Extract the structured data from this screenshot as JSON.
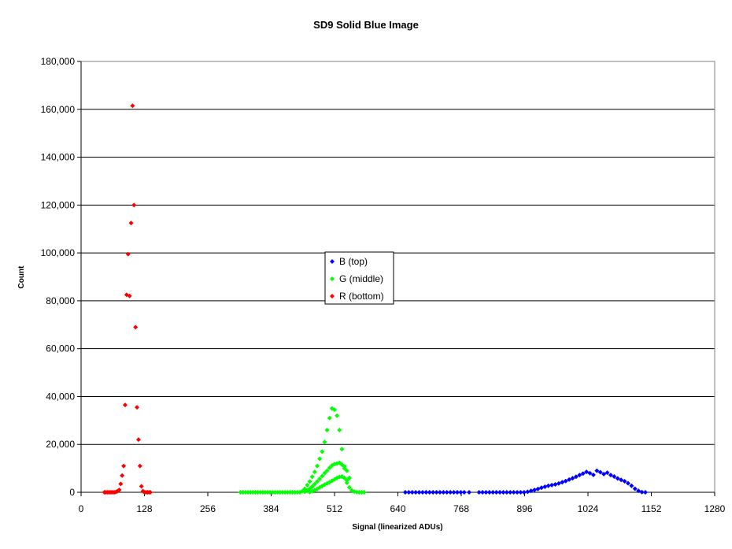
{
  "chart_data": {
    "type": "scatter",
    "title": "SD9 Solid Blue Image",
    "xlabel": "Signal (linearized ADUs)",
    "ylabel": "Count",
    "xlim": [
      0,
      1280
    ],
    "ylim": [
      0,
      180000
    ],
    "xticks": [
      0,
      128,
      256,
      384,
      512,
      640,
      768,
      896,
      1024,
      1152,
      1280
    ],
    "yticks": [
      0,
      20000,
      40000,
      60000,
      80000,
      100000,
      120000,
      140000,
      160000,
      180000
    ],
    "ytick_labels": [
      "0",
      "20,000",
      "40,000",
      "60,000",
      "80,000",
      "100,000",
      "120,000",
      "140,000",
      "160,000",
      "180,000"
    ],
    "grid": "horizontal",
    "legend_position": "center",
    "series": [
      {
        "name": "B (top)",
        "color": "#0000ff",
        "x": [
          655,
          662,
          669,
          676,
          683,
          690,
          697,
          704,
          711,
          718,
          725,
          732,
          739,
          746,
          753,
          760,
          767,
          774,
          784,
          804,
          811,
          818,
          825,
          832,
          839,
          846,
          853,
          860,
          867,
          874,
          881,
          888,
          895,
          902,
          909,
          916,
          923,
          930,
          937,
          944,
          951,
          958,
          965,
          972,
          979,
          986,
          993,
          1000,
          1007,
          1014,
          1021,
          1028,
          1035,
          1042,
          1049,
          1056,
          1063,
          1070,
          1077,
          1084,
          1091,
          1098,
          1105,
          1112,
          1119,
          1126,
          1133,
          1140
        ],
        "y": [
          0,
          0,
          0,
          0,
          0,
          0,
          0,
          0,
          0,
          0,
          0,
          0,
          0,
          0,
          0,
          0,
          0,
          0,
          0,
          0,
          0,
          0,
          0,
          0,
          0,
          0,
          0,
          0,
          0,
          0,
          0,
          0,
          0,
          200,
          600,
          1000,
          1400,
          1900,
          2300,
          2700,
          3000,
          3300,
          3700,
          4200,
          4700,
          5300,
          5900,
          6500,
          7200,
          7800,
          8500,
          8000,
          7300,
          9000,
          8400,
          7600,
          8200,
          7200,
          6600,
          5800,
          5200,
          4600,
          3800,
          2700,
          1500,
          600,
          100,
          0
        ]
      },
      {
        "name": "G (middle)",
        "color": "#00ff00",
        "x": [
          322,
          327,
          332,
          337,
          342,
          347,
          352,
          357,
          362,
          367,
          372,
          377,
          382,
          387,
          392,
          397,
          402,
          407,
          412,
          417,
          422,
          427,
          432,
          437,
          442,
          447,
          452,
          457,
          462,
          467,
          472,
          477,
          482,
          487,
          492,
          497,
          502,
          507,
          512,
          517,
          522,
          527,
          532,
          537,
          542,
          547,
          552,
          557,
          562,
          567,
          572,
          452,
          457,
          462,
          467,
          472,
          477,
          482,
          487,
          492,
          497,
          502,
          507,
          512,
          517,
          522,
          527,
          532,
          537,
          542,
          462,
          467,
          472,
          477,
          482,
          487,
          492,
          497,
          502,
          507,
          512,
          517,
          522,
          527,
          532,
          537
        ],
        "y": [
          0,
          0,
          0,
          0,
          0,
          0,
          0,
          0,
          0,
          0,
          0,
          0,
          0,
          0,
          0,
          0,
          0,
          0,
          0,
          0,
          0,
          0,
          0,
          0,
          0,
          500,
          1500,
          3000,
          4500,
          6500,
          8500,
          11000,
          14000,
          17000,
          21000,
          26000,
          31000,
          35000,
          34500,
          32000,
          26000,
          18000,
          10000,
          5000,
          2000,
          800,
          300,
          100,
          0,
          0,
          0,
          200,
          800,
          1500,
          2400,
          3400,
          4500,
          5600,
          6800,
          8000,
          9000,
          10200,
          11200,
          11800,
          12000,
          12300,
          11500,
          10800,
          9000,
          6000,
          100,
          400,
          900,
          1400,
          2000,
          2600,
          3200,
          3700,
          4200,
          4800,
          5400,
          6000,
          6400,
          6600,
          6000,
          4000
        ]
      },
      {
        "name": "R (bottom)",
        "color": "#ff0000",
        "x": [
          47,
          50,
          53,
          56,
          59,
          62,
          65,
          68,
          71,
          74,
          77,
          80,
          83,
          86,
          89,
          92,
          95,
          98,
          101,
          104,
          107,
          110,
          113,
          116,
          119,
          122,
          125,
          128,
          131,
          134,
          137,
          140
        ],
        "y": [
          0,
          0,
          0,
          0,
          0,
          0,
          0,
          0,
          200,
          500,
          1000,
          3500,
          7000,
          11000,
          36500,
          82500,
          99500,
          82000,
          112500,
          161500,
          120000,
          69000,
          35500,
          22000,
          11000,
          2500,
          500,
          0,
          0,
          0,
          0,
          0
        ]
      }
    ]
  }
}
